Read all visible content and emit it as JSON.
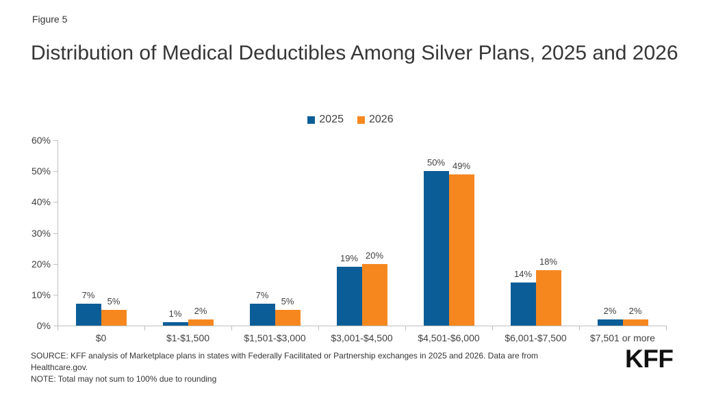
{
  "figure_label": "Figure 5",
  "title": "Distribution of Medical Deductibles Among Silver Plans, 2025 and 2026",
  "legend": {
    "items": [
      {
        "label": "2025",
        "color": "#0B5D97"
      },
      {
        "label": "2026",
        "color": "#F6871F"
      }
    ]
  },
  "footer": {
    "source": "SOURCE: KFF analysis of Marketplace plans in states with Federally Facilitated or Partnership exchanges in 2025 and 2026. Data are from Healthcare.gov.",
    "note": "NOTE: Total may not sum to 100% due to rounding",
    "logo_text": "KFF"
  },
  "colors": {
    "series_2025": "#0B5D97",
    "series_2026": "#F6871F",
    "axis": "#BFBFBF",
    "label_text": "#404040"
  },
  "chart_data": {
    "type": "bar",
    "title": "Distribution of Medical Deductibles Among Silver Plans, 2025 and 2026",
    "categories": [
      "$0",
      "$1-$1,500",
      "$1,501-$3,000",
      "$3,001-$4,500",
      "$4,501-$6,000",
      "$6,001-$7,500",
      "$7,501 or more"
    ],
    "series": [
      {
        "name": "2025",
        "color": "#0B5D97",
        "values": [
          7,
          1,
          7,
          19,
          50,
          14,
          2
        ]
      },
      {
        "name": "2026",
        "color": "#F6871F",
        "values": [
          5,
          2,
          5,
          20,
          49,
          18,
          2
        ]
      }
    ],
    "value_label_suffix": "%",
    "xlabel": "",
    "ylabel": "",
    "ylim": [
      0,
      60
    ],
    "ytick_step": 10,
    "ytick_labels": [
      "0%",
      "10%",
      "20%",
      "30%",
      "40%",
      "50%",
      "60%"
    ],
    "grid": false,
    "legend_position": "top-center"
  }
}
